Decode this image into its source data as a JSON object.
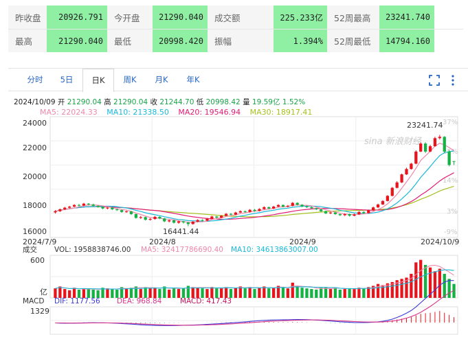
{
  "summary": {
    "row1": [
      {
        "label": "昨收盘",
        "value": "20926.791"
      },
      {
        "label": "今开盘",
        "value": "21290.040"
      },
      {
        "label": "成交额",
        "value": "225.233亿"
      },
      {
        "label": "52周最高",
        "value": "23241.740"
      }
    ],
    "row2": [
      {
        "label": "最高",
        "value": "21290.040"
      },
      {
        "label": "最低",
        "value": "20998.420"
      },
      {
        "label": "振幅",
        "value": "1.394%"
      },
      {
        "label": "52周最低",
        "value": "14794.160"
      }
    ]
  },
  "tabs": [
    "分时",
    "5日",
    "日K",
    "周K",
    "月K",
    "年K"
  ],
  "active_tab": "日K",
  "icons": [
    "expand-icon",
    "more-icon"
  ],
  "info": {
    "date": "2024/10/09",
    "open_label": "开",
    "open": "21290.04",
    "high_label": "高",
    "high": "21290.04",
    "close_label": "收",
    "close": "21244.70",
    "low_label": "低",
    "low": "20998.42",
    "vol_label": "量",
    "vol": "19.59亿",
    "change": "1.52%"
  },
  "ma": {
    "ma5": "MA5: 22024.33",
    "ma10": "MA10: 21338.50",
    "ma20": "MA20: 19546.94",
    "ma30": "MA30: 18917.41"
  },
  "colors": {
    "up": "#e8141b",
    "down": "#14b143",
    "ma5": "#ee88aa",
    "ma10": "#19b8d8",
    "ma20": "#e21a74",
    "ma30": "#a5c11e",
    "dif": "#3a3ad6",
    "dea": "#d9348a",
    "macd": "#c5125b",
    "tab": "#2566c4"
  },
  "chart_data": {
    "type": "candlestick",
    "y_ticks": [
      "24000",
      "22000",
      "20000",
      "18000",
      "16000"
    ],
    "right_ticks": [
      "37%",
      "25%",
      "14%",
      "3%",
      "-9%"
    ],
    "x_labels": [
      "2024/7/9",
      "2024/8",
      "2024/9",
      "2024/10/9"
    ],
    "high_annotation": "23241.74",
    "low_annotation": "16441.44",
    "volume": {
      "label": "成交",
      "vol": "VOL: 1958838746.00",
      "ma5": "MA5: 3241778669​0.40",
      "ma10": "MA10: 34613863007.00",
      "top_tick": "600",
      "unit": "亿"
    },
    "macd": {
      "label": "MACD",
      "dif": "DIF: 1177.56",
      "dea": "DEA: 968.84",
      "macd": "MACD: 417.43",
      "top_tick": "1329"
    },
    "candles": [
      [
        17470,
        17560,
        17380,
        17640
      ],
      [
        17560,
        17700,
        17500,
        17760
      ],
      [
        17700,
        17820,
        17640,
        17880
      ],
      [
        17820,
        17900,
        17760,
        17960
      ],
      [
        17900,
        18020,
        17860,
        18080
      ],
      [
        18020,
        17980,
        17900,
        18100
      ],
      [
        17980,
        18120,
        17920,
        18180
      ],
      [
        18120,
        18060,
        17980,
        18160
      ],
      [
        18060,
        17960,
        17900,
        18120
      ],
      [
        17960,
        17880,
        17820,
        18000
      ],
      [
        17880,
        17760,
        17700,
        17920
      ],
      [
        17760,
        17820,
        17700,
        17880
      ],
      [
        17820,
        17700,
        17640,
        17860
      ],
      [
        17700,
        17640,
        17580,
        17740
      ],
      [
        17640,
        17500,
        17440,
        17680
      ],
      [
        17500,
        17540,
        17440,
        17600
      ],
      [
        17540,
        17340,
        17280,
        17580
      ],
      [
        17340,
        17060,
        17000,
        17380
      ],
      [
        17060,
        17120,
        16980,
        17200
      ],
      [
        17120,
        16920,
        16860,
        17160
      ],
      [
        16920,
        16980,
        16860,
        17040
      ],
      [
        16980,
        17140,
        16920,
        17200
      ],
      [
        17140,
        17020,
        16960,
        17180
      ],
      [
        17020,
        16800,
        16740,
        17060
      ],
      [
        16800,
        16880,
        16720,
        16940
      ],
      [
        16880,
        16700,
        16640,
        16920
      ],
      [
        16700,
        16800,
        16620,
        16860
      ],
      [
        16800,
        16720,
        16640,
        16840
      ],
      [
        16720,
        16600,
        16441,
        16760
      ],
      [
        16600,
        16780,
        16560,
        16820
      ],
      [
        16780,
        16900,
        16740,
        16960
      ],
      [
        16900,
        16860,
        16780,
        16960
      ],
      [
        16860,
        17000,
        16820,
        17060
      ],
      [
        17000,
        17160,
        16960,
        17220
      ],
      [
        17160,
        17080,
        17020,
        17200
      ],
      [
        17080,
        17220,
        17040,
        17260
      ],
      [
        17220,
        17360,
        17180,
        17420
      ],
      [
        17360,
        17300,
        17240,
        17420
      ],
      [
        17300,
        17460,
        17260,
        17520
      ],
      [
        17460,
        17560,
        17420,
        17620
      ],
      [
        17560,
        17500,
        17440,
        17600
      ],
      [
        17500,
        17660,
        17460,
        17720
      ],
      [
        17660,
        17580,
        17520,
        17720
      ],
      [
        17580,
        17720,
        17540,
        17780
      ],
      [
        17720,
        17860,
        17680,
        17920
      ],
      [
        17860,
        17760,
        17700,
        17900
      ],
      [
        17760,
        17900,
        17720,
        17960
      ],
      [
        17900,
        18020,
        17860,
        18080
      ],
      [
        18020,
        17900,
        17840,
        18060
      ],
      [
        17900,
        17960,
        17840,
        18020
      ],
      [
        17960,
        18180,
        17920,
        18240
      ],
      [
        18180,
        18040,
        17980,
        18220
      ],
      [
        18040,
        17920,
        17860,
        18080
      ],
      [
        17920,
        17860,
        17800,
        17980
      ],
      [
        17860,
        17780,
        17720,
        17900
      ],
      [
        17780,
        17700,
        17640,
        17820
      ],
      [
        17700,
        17560,
        17500,
        17740
      ],
      [
        17560,
        17400,
        17340,
        17600
      ],
      [
        17400,
        17460,
        17340,
        17520
      ],
      [
        17460,
        17340,
        17280,
        17500
      ],
      [
        17340,
        17260,
        17200,
        17380
      ],
      [
        17260,
        17340,
        17200,
        17400
      ],
      [
        17340,
        17220,
        17160,
        17380
      ],
      [
        17220,
        17320,
        17180,
        17380
      ],
      [
        17320,
        17500,
        17280,
        17560
      ],
      [
        17500,
        17420,
        17360,
        17560
      ],
      [
        17420,
        17620,
        17380,
        17680
      ],
      [
        17620,
        17840,
        17580,
        17900
      ],
      [
        17840,
        18060,
        17800,
        18120
      ],
      [
        18060,
        18320,
        18020,
        18380
      ],
      [
        18320,
        18700,
        18280,
        18760
      ],
      [
        18700,
        19300,
        18660,
        19360
      ],
      [
        19300,
        19700,
        19260,
        19800
      ],
      [
        19700,
        20300,
        19660,
        20360
      ],
      [
        20300,
        20700,
        20260,
        20800
      ],
      [
        20700,
        21100,
        20660,
        21160
      ],
      [
        21100,
        22000,
        21060,
        22100
      ],
      [
        22000,
        22600,
        21960,
        22700
      ],
      [
        22600,
        22000,
        21900,
        22700
      ],
      [
        22000,
        22400,
        21960,
        22500
      ],
      [
        22400,
        23000,
        22360,
        23100
      ],
      [
        23000,
        23100,
        22900,
        23241.74
      ],
      [
        23100,
        22000,
        21900,
        23150
      ],
      [
        22000,
        21000,
        20900,
        22100
      ],
      [
        21290,
        21245,
        20998,
        21290
      ]
    ],
    "volumes": [
      150,
      180,
      140,
      120,
      160,
      130,
      150,
      140,
      130,
      120,
      160,
      150,
      140,
      130,
      170,
      150,
      160,
      180,
      140,
      170,
      150,
      160,
      140,
      180,
      130,
      160,
      140,
      150,
      190,
      170,
      160,
      150,
      140,
      170,
      150,
      160,
      170,
      140,
      160,
      180,
      150,
      170,
      140,
      160,
      180,
      150,
      160,
      190,
      170,
      150,
      240,
      190,
      160,
      150,
      140,
      130,
      160,
      170,
      140,
      160,
      130,
      140,
      150,
      140,
      160,
      150,
      170,
      190,
      220,
      200,
      230,
      250,
      280,
      300,
      320,
      380,
      560,
      600,
      520,
      480,
      420,
      460,
      380,
      300,
      220
    ],
    "macd_hist": [
      -40,
      -30,
      -20,
      -10,
      5,
      10,
      15,
      10,
      5,
      -5,
      -10,
      -15,
      -20,
      -30,
      -40,
      -45,
      -50,
      -55,
      -60,
      -55,
      -50,
      -45,
      -40,
      -35,
      -30,
      -25,
      -20,
      -15,
      -10,
      -5,
      0,
      5,
      10,
      15,
      20,
      25,
      30,
      35,
      40,
      45,
      50,
      55,
      60,
      60,
      55,
      50,
      45,
      40,
      35,
      30,
      45,
      40,
      30,
      20,
      10,
      0,
      -10,
      -20,
      -25,
      -30,
      -35,
      -30,
      -25,
      -20,
      -10,
      0,
      15,
      30,
      50,
      80,
      120,
      180,
      240,
      300,
      360,
      420,
      560,
      680,
      720,
      760,
      820,
      900,
      760,
      600,
      417
    ]
  }
}
